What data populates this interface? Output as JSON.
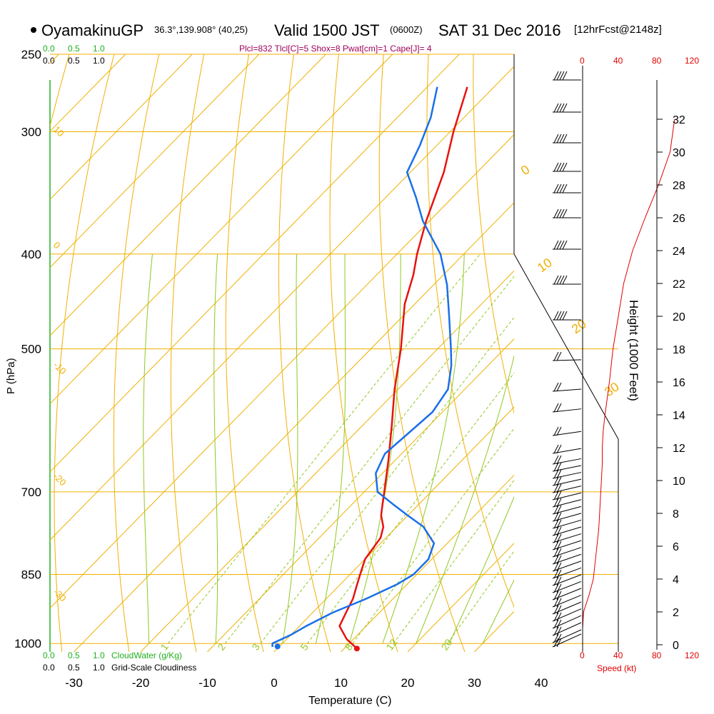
{
  "header": {
    "station": "OyamakinuGP",
    "coords": "36.3°,139.908° (40,25)",
    "valid_prefix": "Valid 1500 JST",
    "valid_z": "(0600Z)",
    "valid_date": "SAT 31 Dec 2016",
    "forecast": "[12hrFcst@2148z]",
    "indices": "Plcl=832 Tlcl[C]=5 Shox=8 Pwat[cm]=1 Cape[J]= 4"
  },
  "colors": {
    "temperature": "#e8120e",
    "dewpoint": "#1a6fe8",
    "isotherm": "#f0b000",
    "isobar": "#f0b000",
    "dry_adiabat": "#f0b000",
    "moist_adiabat": "#90c820",
    "mixing_ratio": "#90c820",
    "cloudwater": "#20b020",
    "speed": "#e00000",
    "indices": "#a0005a"
  },
  "left_scales": {
    "cloudwater_ticks": [
      "0.0",
      "0.5",
      "1.0"
    ],
    "cloudiness_ticks": [
      "0.0",
      "0.5",
      "1.0"
    ],
    "cloudwater_label": "CloudWater (g/Kg)",
    "cloudiness_label": "Grid-Scale Cloudiness"
  },
  "speed_scale": {
    "ticks": [
      "0",
      "40",
      "80",
      "120"
    ],
    "label": "Speed (kt)"
  },
  "chart_data": {
    "type": "line",
    "chart_kind": "skew-T log-P sounding",
    "xlabel": "Temperature (C)",
    "ylabel": "P (hPa)",
    "y2label": "Height (1000 Feet)",
    "x_range": [
      -35,
      45
    ],
    "p_range": [
      1020,
      250
    ],
    "x_ticks": [
      "-30",
      "-20",
      "-10",
      "0",
      "10",
      "20",
      "30",
      "40"
    ],
    "isobars": [
      "250",
      "300",
      "400",
      "500",
      "700",
      "850",
      "1000"
    ],
    "height_ticks": [
      "0",
      "2",
      "4",
      "6",
      "8",
      "10",
      "12",
      "14",
      "16",
      "18",
      "20",
      "22",
      "24",
      "26",
      "28",
      "30",
      "32"
    ],
    "dry_adiabat_labels": [
      "-30",
      "-20",
      "-10",
      "0",
      "10",
      "20",
      "30"
    ],
    "left_temp_labels": [
      "10",
      "0",
      "-10",
      "-20",
      "-30"
    ],
    "mixing_ratio_labels": [
      "1",
      "2",
      "3",
      "5",
      "8",
      "12",
      "20"
    ],
    "series": [
      {
        "name": "Temperature",
        "p": [
          1012,
          990,
          960,
          930,
          900,
          870,
          850,
          820,
          780,
          760,
          740,
          720,
          700,
          650,
          600,
          550,
          500,
          450,
          420,
          400,
          370,
          330,
          300,
          270
        ],
        "t": [
          11.9,
          9.0,
          6.0,
          5.0,
          4.0,
          2.5,
          1.5,
          0.0,
          -0.8,
          -2.0,
          -4.0,
          -5.5,
          -7.0,
          -11.0,
          -15.5,
          -20.5,
          -25.5,
          -31.5,
          -34.5,
          -37.0,
          -40.5,
          -45.0,
          -49.5,
          -54.0
        ]
      },
      {
        "name": "Dewpoint",
        "p": [
          1008,
          1000,
          980,
          960,
          930,
          900,
          870,
          850,
          820,
          790,
          760,
          740,
          720,
          700,
          670,
          640,
          610,
          580,
          550,
          520,
          500,
          460,
          430,
          400,
          370,
          350,
          330,
          310,
          290,
          270
        ],
        "t": [
          -1.0,
          -1.5,
          0.0,
          1.0,
          3.0,
          6.0,
          8.5,
          9.5,
          9.5,
          8.0,
          4.0,
          0.0,
          -4.0,
          -8.0,
          -11.0,
          -12.5,
          -12.0,
          -11.5,
          -12.5,
          -15.5,
          -18.0,
          -23.5,
          -28.0,
          -33.5,
          -41.0,
          -45.5,
          -50.5,
          -52.5,
          -55.0,
          -58.5
        ]
      }
    ],
    "height_profile": {
      "name": "Speed (kt)",
      "h_kft": [
        0,
        1,
        2,
        3,
        4,
        5,
        6,
        7,
        8,
        9,
        10,
        11,
        12,
        13,
        14,
        16,
        18,
        20,
        22,
        24,
        26,
        28,
        30,
        32
      ],
      "speed_kt": [
        0,
        0,
        1,
        7,
        12,
        14,
        16,
        18,
        19,
        20,
        21,
        22,
        22,
        23,
        25,
        30,
        34,
        40,
        46,
        56,
        70,
        85,
        98,
        103
      ]
    },
    "surface_dewpoint_marker": {
      "p": 1007,
      "t": -0.3
    }
  }
}
